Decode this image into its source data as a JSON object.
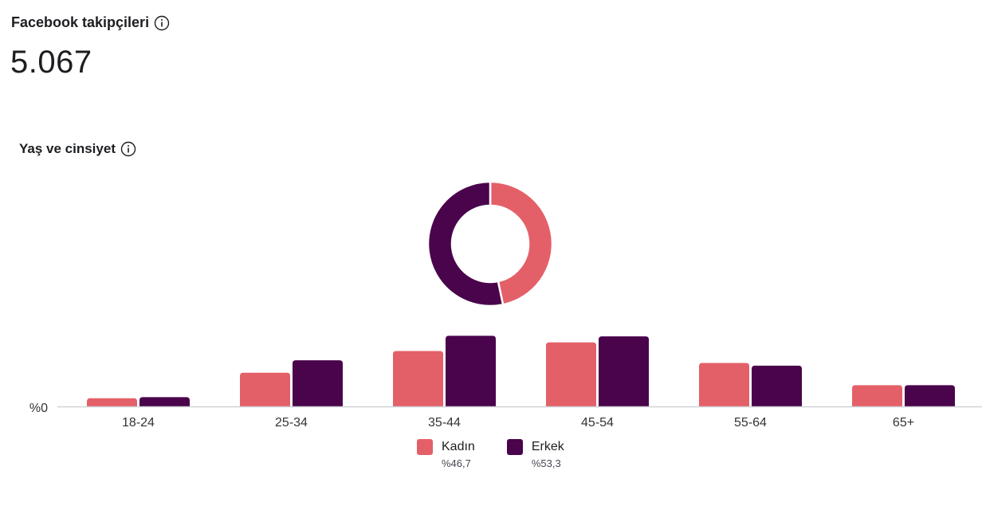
{
  "followers": {
    "title": "Facebook takipçileri",
    "count": "5.067",
    "info_icon": "info-icon"
  },
  "age_gender": {
    "title": "Yaş ve cinsiyet",
    "info_icon": "info-icon"
  },
  "colors": {
    "female": "#e46068",
    "male": "#4a044b",
    "axis": "#d0d3d8"
  },
  "chart_data": [
    {
      "type": "pie",
      "variant": "donut",
      "labels": [
        "Kadın",
        "Erkek"
      ],
      "values": [
        46.7,
        53.3
      ],
      "title": ""
    },
    {
      "type": "bar",
      "categories": [
        "18-24",
        "25-34",
        "35-44",
        "45-54",
        "55-64",
        "65+"
      ],
      "series": [
        {
          "name": "Kadın",
          "values": [
            1.5,
            6.2,
            10.2,
            11.8,
            8.0,
            3.9
          ]
        },
        {
          "name": "Erkek",
          "values": [
            1.7,
            8.5,
            13.0,
            12.9,
            7.5,
            3.9
          ]
        }
      ],
      "units": "percent",
      "y_tick_labels": [
        "%0"
      ],
      "ylim": [
        0,
        13.5
      ],
      "grid": false,
      "legend_position": "bottom"
    }
  ],
  "legend": [
    {
      "name": "Kadın",
      "percent": "%46,7"
    },
    {
      "name": "Erkek",
      "percent": "%53,3"
    }
  ]
}
